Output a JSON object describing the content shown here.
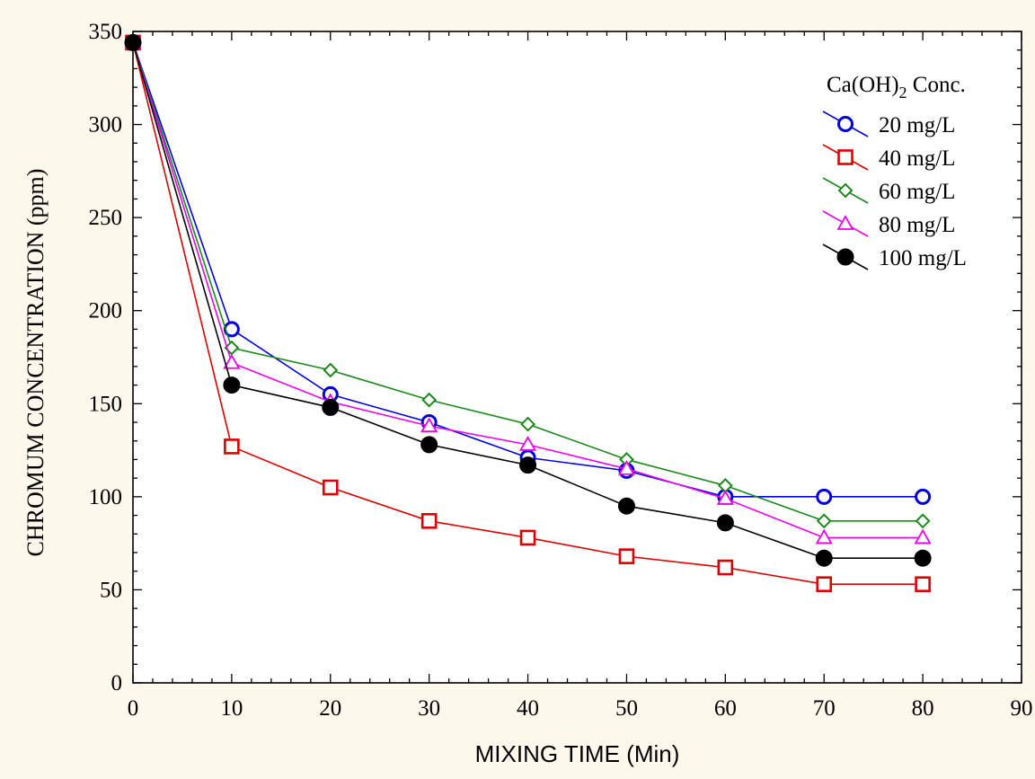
{
  "chart_data": {
    "type": "line",
    "xlabel": "MIXING TIME (Min)",
    "ylabel": "CHROMUM CONCENTRATION (ppm)",
    "xlim": [
      0,
      90
    ],
    "ylim": [
      0,
      350
    ],
    "xticks": [
      0,
      10,
      20,
      30,
      40,
      50,
      60,
      70,
      80,
      90
    ],
    "yticks": [
      0,
      50,
      100,
      150,
      200,
      250,
      300,
      350
    ],
    "grid": false,
    "legend": {
      "position": "top-right",
      "title_main": "Ca(OH)",
      "title_sub": "2",
      "title_tail": " Conc."
    },
    "x": [
      0,
      10,
      20,
      30,
      40,
      50,
      60,
      70,
      80
    ],
    "series": [
      {
        "name": "20  mg/L",
        "color": "#0000dd",
        "marker": "circle-open",
        "values": [
          344,
          190,
          155,
          140,
          121,
          114,
          100,
          100,
          100
        ]
      },
      {
        "name": "40  mg/L",
        "color": "#dd0000",
        "marker": "square-open",
        "values": [
          344,
          127,
          105,
          87,
          78,
          68,
          62,
          53,
          53
        ]
      },
      {
        "name": "60  mg/L",
        "color": "#1a8a1a",
        "marker": "diamond-open",
        "values": [
          344,
          180,
          168,
          152,
          139,
          120,
          106,
          87,
          87
        ]
      },
      {
        "name": "80  mg/L",
        "color": "#ee00ee",
        "marker": "triangle-open",
        "values": [
          344,
          172,
          151,
          138,
          128,
          115,
          99,
          78,
          78
        ]
      },
      {
        "name": "100 mg/L",
        "color": "#000000",
        "marker": "circle-filled",
        "values": [
          344,
          160,
          148,
          128,
          117,
          95,
          86,
          67,
          67
        ]
      }
    ]
  }
}
